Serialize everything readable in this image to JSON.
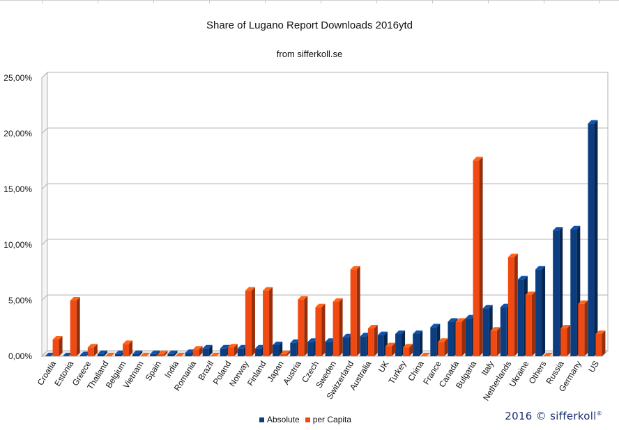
{
  "chart_data": {
    "type": "bar",
    "title": "Share of Lugano Report Downloads 2016ytd",
    "subtitle": "from sifferkoll.se",
    "ylim": [
      0,
      0.25
    ],
    "yticks": [
      "0,00%",
      "5,00%",
      "10,00%",
      "15,00%",
      "20,00%",
      "25,00%"
    ],
    "categories": [
      "Croatia",
      "Estonia",
      "Greece",
      "Thailand",
      "Belgium",
      "Vietnam",
      "Spain",
      "India",
      "Romania",
      "Brazil",
      "Poland",
      "Norway",
      "Finland",
      "Japan",
      "Austria",
      "Czech",
      "Sweden",
      "Switzerland",
      "Australia",
      "UK",
      "Turkey",
      "China",
      "France",
      "Canada",
      "Bulgaria",
      "Italy",
      "Netherlands",
      "Ukraine",
      "Others",
      "Russia",
      "Germany",
      "US"
    ],
    "series": [
      {
        "name": "Absolute",
        "color": "#0b3d80",
        "values": [
          0.0,
          0.0,
          0.001,
          0.002,
          0.002,
          0.002,
          0.002,
          0.002,
          0.003,
          0.007,
          0.007,
          0.007,
          0.007,
          0.01,
          0.012,
          0.013,
          0.013,
          0.017,
          0.018,
          0.019,
          0.02,
          0.02,
          0.026,
          0.031,
          0.034,
          0.043,
          0.044,
          0.069,
          0.078,
          0.113,
          0.114,
          0.209
        ]
      },
      {
        "name": "per Capita",
        "color": "#f04a12",
        "values": [
          0.015,
          0.05,
          0.008,
          0.0,
          0.011,
          0.0,
          0.002,
          0.0,
          0.006,
          0.0,
          0.008,
          0.059,
          0.059,
          0.002,
          0.051,
          0.044,
          0.049,
          0.078,
          0.025,
          0.009,
          0.008,
          0.0,
          0.013,
          0.031,
          0.176,
          0.023,
          0.089,
          0.055,
          0.0,
          0.025,
          0.047,
          0.02
        ]
      }
    ],
    "legend": "bottom-center",
    "grid": true
  },
  "footer": {
    "copyright": "2016 © sifferkoll",
    "registered": "®"
  }
}
